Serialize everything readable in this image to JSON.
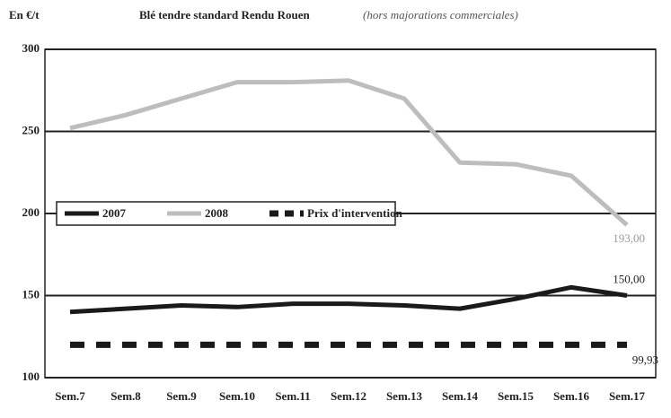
{
  "chart_data": {
    "type": "line",
    "title": "Blé tendre standard Rendu Rouen",
    "subtitle": "(hors majorations commerciales)",
    "y_label": "En €/t",
    "categories": [
      "Sem.7",
      "Sem.8",
      "Sem.9",
      "Sem.10",
      "Sem.11",
      "Sem.12",
      "Sem.13",
      "Sem.14",
      "Sem.15",
      "Sem.16",
      "Sem.17"
    ],
    "series": [
      {
        "name": "2007",
        "color": "#1a1a1a",
        "dash": false,
        "values": [
          140,
          142,
          144,
          143,
          145,
          145,
          144,
          142,
          148,
          155,
          150
        ],
        "value_labels": [
          null,
          null,
          null,
          null,
          null,
          null,
          null,
          null,
          null,
          null,
          "150,00"
        ]
      },
      {
        "name": "2008",
        "color": "#bdbdbd",
        "dash": false,
        "values": [
          252,
          260,
          270,
          280,
          280,
          281,
          270,
          231,
          230,
          223,
          193
        ],
        "value_labels": [
          null,
          null,
          null,
          null,
          null,
          null,
          null,
          null,
          null,
          null,
          "193,00"
        ]
      },
      {
        "name": "Prix d'intervention",
        "color": "#1a1a1a",
        "dash": true,
        "values": [
          120,
          120,
          120,
          120,
          120,
          120,
          120,
          120,
          120,
          120,
          120
        ]
      }
    ],
    "annotations": [
      "99,93"
    ],
    "ylim": [
      100,
      300
    ],
    "yticks": [
      100,
      150,
      200,
      250,
      300
    ],
    "grid": true,
    "legend": "left"
  }
}
